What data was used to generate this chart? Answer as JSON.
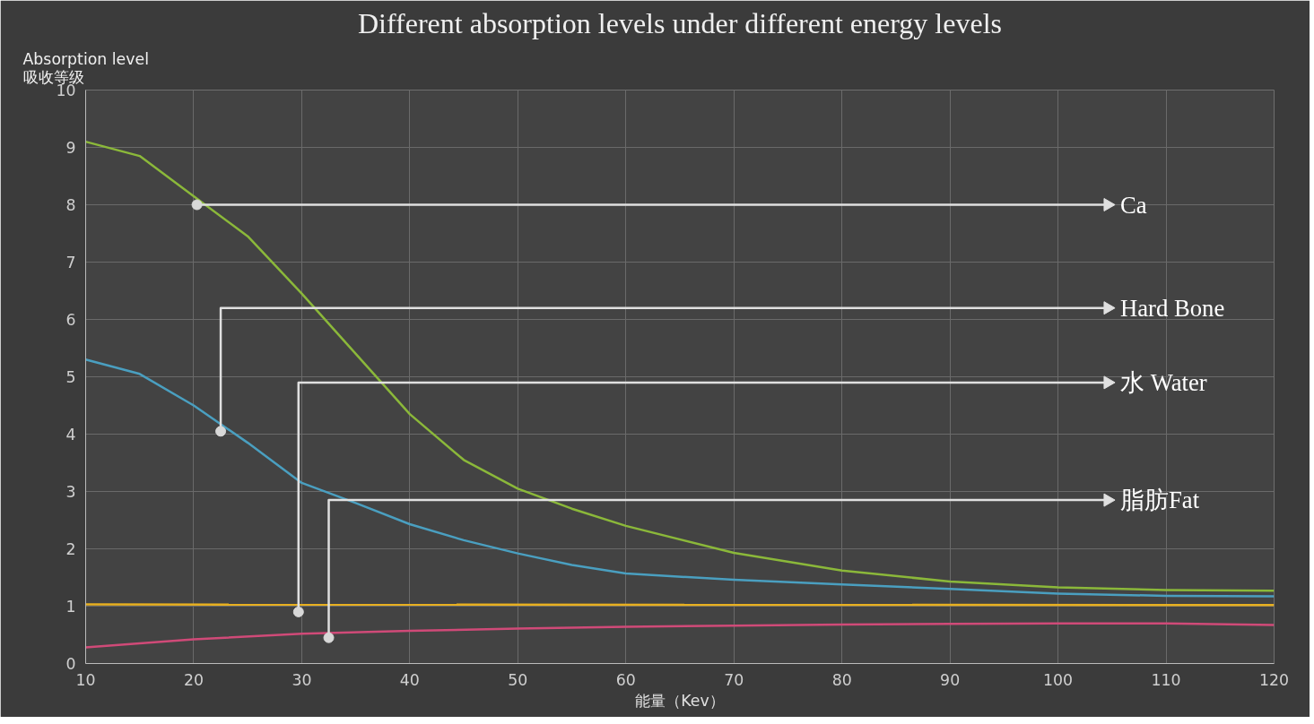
{
  "chart_data": {
    "type": "line",
    "title": "Different absorption levels under different energy levels",
    "xlabel": "能量（Kev）",
    "ylabel": "Absorption level\n吸收等级",
    "xlim": [
      10,
      120
    ],
    "ylim": [
      0,
      10
    ],
    "xticks": [
      10,
      20,
      30,
      40,
      50,
      60,
      70,
      80,
      90,
      100,
      110,
      120
    ],
    "yticks": [
      0,
      1,
      2,
      3,
      4,
      5,
      6,
      7,
      8,
      9,
      10
    ],
    "grid": true,
    "marker": "none",
    "line_style": "solid",
    "series": [
      {
        "color": "#8bb83a",
        "x": [
          10,
          15,
          20,
          25,
          30,
          35,
          40,
          45,
          50,
          55,
          60,
          70,
          80,
          90,
          100,
          110,
          120
        ],
        "values": [
          9.1,
          8.85,
          8.15,
          7.45,
          6.45,
          5.4,
          4.35,
          3.55,
          3.05,
          2.7,
          2.4,
          1.93,
          1.62,
          1.43,
          1.33,
          1.28,
          1.27
        ]
      },
      {
        "color": "#4a9fc0",
        "x": [
          10,
          15,
          20,
          25,
          30,
          35,
          40,
          45,
          50,
          55,
          60,
          70,
          80,
          90,
          100,
          110,
          120
        ],
        "values": [
          5.3,
          5.05,
          4.5,
          3.85,
          3.15,
          2.8,
          2.43,
          2.15,
          1.92,
          1.72,
          1.57,
          1.46,
          1.38,
          1.3,
          1.22,
          1.18,
          1.17
        ]
      },
      {
        "color": "#e8b020",
        "x": [
          10,
          120
        ],
        "values": [
          1.03,
          1.02
        ]
      },
      {
        "color": "#d04a78",
        "x": [
          10,
          20,
          30,
          40,
          50,
          60,
          70,
          80,
          90,
          100,
          110,
          120
        ],
        "values": [
          0.28,
          0.42,
          0.52,
          0.57,
          0.61,
          0.64,
          0.66,
          0.68,
          0.69,
          0.7,
          0.7,
          0.67
        ]
      }
    ],
    "annotations": [
      {
        "text": "Ca",
        "x": 20.3,
        "y": 8
      },
      {
        "text": "Hard Bone",
        "x": 22.5,
        "y": 4.05
      },
      {
        "text": "水 Water",
        "x": 29.7,
        "y": 0.9
      },
      {
        "text": "脂肪Fat",
        "x": 32.5,
        "y": 0.45
      }
    ]
  }
}
